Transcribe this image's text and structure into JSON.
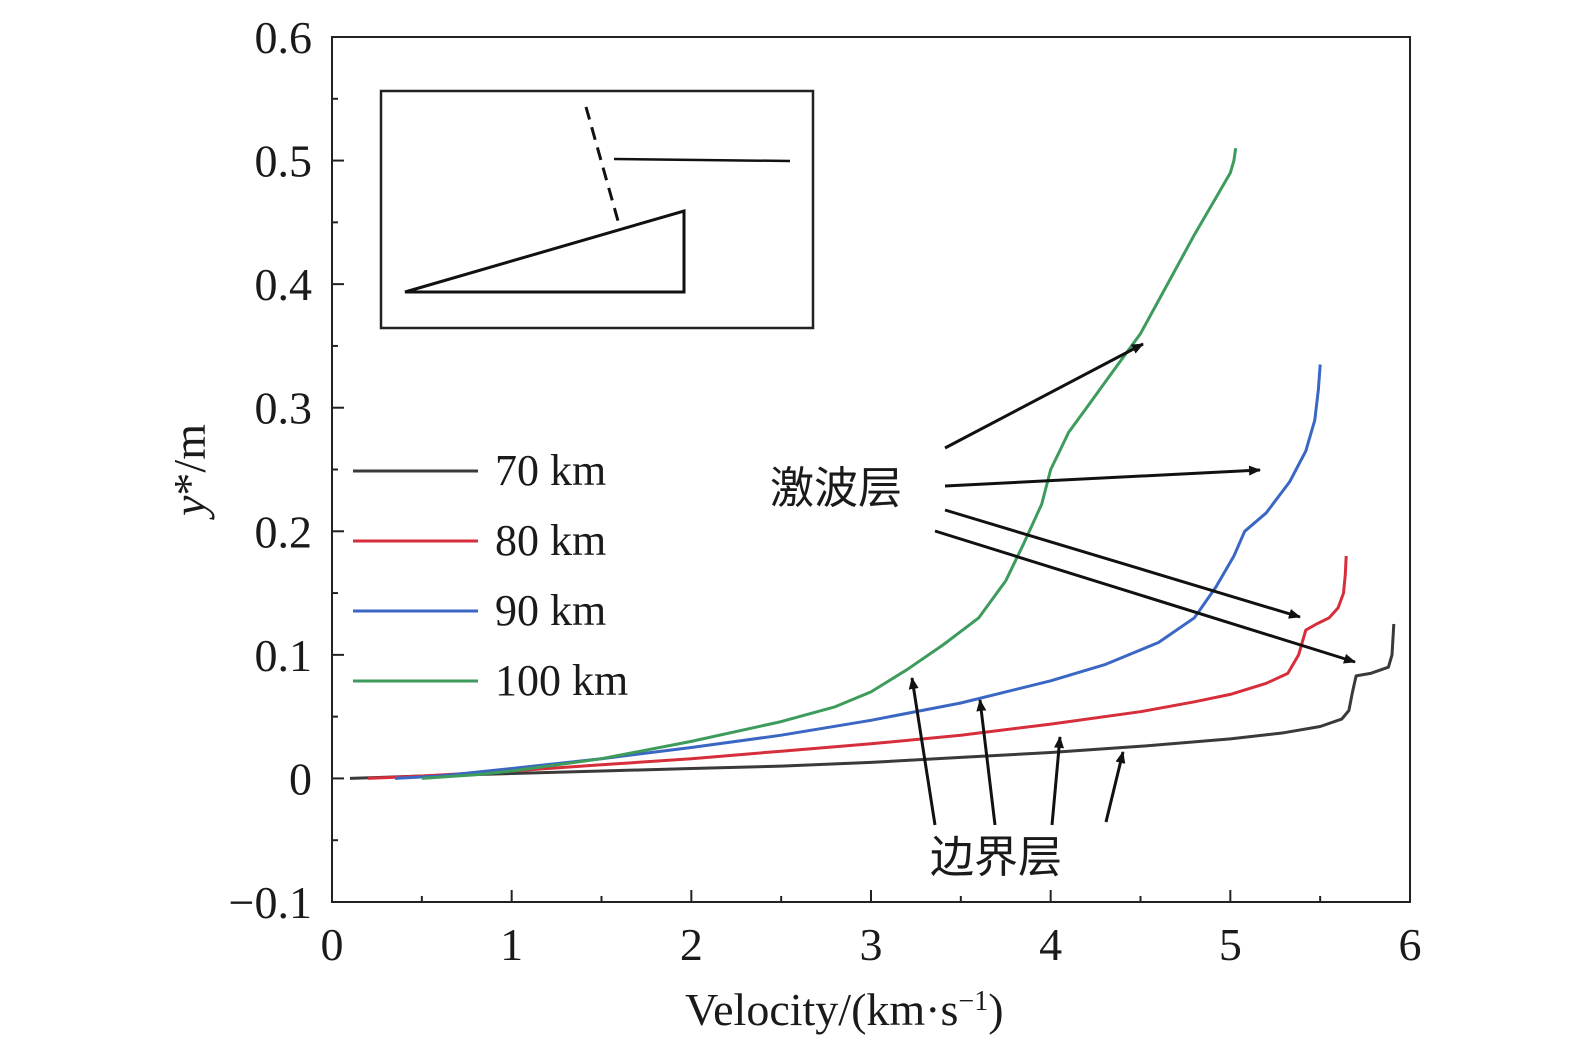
{
  "chart_data": {
    "type": "line",
    "xlabel_main": "Velocity/(km·s",
    "xlabel_sup": "−1",
    "xlabel_close": ")",
    "ylabel_var": "y",
    "ylabel_rest": "*/m",
    "xlim": [
      0,
      6
    ],
    "ylim": [
      -0.1,
      0.6
    ],
    "x_ticks": [
      0,
      1,
      2,
      3,
      4,
      5,
      6
    ],
    "x_tick_labels": [
      "0",
      "1",
      "2",
      "3",
      "4",
      "5",
      "6"
    ],
    "y_ticks": [
      -0.1,
      0,
      0.1,
      0.2,
      0.3,
      0.4,
      0.5,
      0.6
    ],
    "y_tick_labels": [
      "−0.1",
      "0",
      "0.1",
      "0.2",
      "0.3",
      "0.4",
      "0.5",
      "0.6"
    ],
    "legend_position": "center-left",
    "series": [
      {
        "name": "70 km",
        "color": "#3a3a3a",
        "points": [
          [
            0.1,
            0.0
          ],
          [
            0.5,
            0.002
          ],
          [
            1.0,
            0.004
          ],
          [
            1.5,
            0.006
          ],
          [
            2.0,
            0.008
          ],
          [
            2.5,
            0.01
          ],
          [
            3.0,
            0.013
          ],
          [
            3.5,
            0.017
          ],
          [
            4.0,
            0.021
          ],
          [
            4.5,
            0.026
          ],
          [
            5.0,
            0.032
          ],
          [
            5.3,
            0.037
          ],
          [
            5.5,
            0.042
          ],
          [
            5.62,
            0.048
          ],
          [
            5.66,
            0.055
          ],
          [
            5.68,
            0.07
          ],
          [
            5.7,
            0.083
          ],
          [
            5.78,
            0.085
          ],
          [
            5.88,
            0.09
          ],
          [
            5.9,
            0.1
          ],
          [
            5.91,
            0.125
          ]
        ]
      },
      {
        "name": "80 km",
        "color": "#d62e3a",
        "points": [
          [
            0.2,
            0.0
          ],
          [
            0.5,
            0.002
          ],
          [
            1.0,
            0.006
          ],
          [
            1.5,
            0.011
          ],
          [
            2.0,
            0.016
          ],
          [
            2.5,
            0.022
          ],
          [
            3.0,
            0.028
          ],
          [
            3.5,
            0.035
          ],
          [
            4.0,
            0.044
          ],
          [
            4.5,
            0.054
          ],
          [
            4.8,
            0.062
          ],
          [
            5.0,
            0.068
          ],
          [
            5.2,
            0.077
          ],
          [
            5.32,
            0.085
          ],
          [
            5.38,
            0.1
          ],
          [
            5.42,
            0.12
          ],
          [
            5.48,
            0.125
          ],
          [
            5.55,
            0.13
          ],
          [
            5.6,
            0.138
          ],
          [
            5.63,
            0.15
          ],
          [
            5.64,
            0.165
          ],
          [
            5.645,
            0.18
          ]
        ]
      },
      {
        "name": "90 km",
        "color": "#3a66c4",
        "points": [
          [
            0.35,
            0.0
          ],
          [
            0.6,
            0.002
          ],
          [
            1.0,
            0.008
          ],
          [
            1.5,
            0.016
          ],
          [
            2.0,
            0.025
          ],
          [
            2.5,
            0.035
          ],
          [
            3.0,
            0.047
          ],
          [
            3.5,
            0.061
          ],
          [
            4.0,
            0.079
          ],
          [
            4.3,
            0.092
          ],
          [
            4.6,
            0.11
          ],
          [
            4.8,
            0.13
          ],
          [
            4.92,
            0.155
          ],
          [
            5.02,
            0.18
          ],
          [
            5.08,
            0.2
          ],
          [
            5.2,
            0.215
          ],
          [
            5.33,
            0.24
          ],
          [
            5.42,
            0.265
          ],
          [
            5.47,
            0.29
          ],
          [
            5.49,
            0.315
          ],
          [
            5.5,
            0.335
          ]
        ]
      },
      {
        "name": "100 km",
        "color": "#3d9b5c",
        "points": [
          [
            0.5,
            0.0
          ],
          [
            0.8,
            0.003
          ],
          [
            1.0,
            0.006
          ],
          [
            1.5,
            0.016
          ],
          [
            2.0,
            0.03
          ],
          [
            2.5,
            0.046
          ],
          [
            2.8,
            0.058
          ],
          [
            3.0,
            0.07
          ],
          [
            3.2,
            0.088
          ],
          [
            3.4,
            0.108
          ],
          [
            3.6,
            0.13
          ],
          [
            3.75,
            0.16
          ],
          [
            3.85,
            0.19
          ],
          [
            3.95,
            0.222
          ],
          [
            4.0,
            0.25
          ],
          [
            4.05,
            0.265
          ],
          [
            4.1,
            0.28
          ],
          [
            4.2,
            0.3
          ],
          [
            4.35,
            0.33
          ],
          [
            4.5,
            0.36
          ],
          [
            4.65,
            0.4
          ],
          [
            4.8,
            0.44
          ],
          [
            4.92,
            0.47
          ],
          [
            5.0,
            0.49
          ],
          [
            5.02,
            0.5
          ],
          [
            5.03,
            0.51
          ]
        ]
      }
    ],
    "annotations": {
      "shock_label": "激波层",
      "boundary_label": "边界层"
    }
  }
}
